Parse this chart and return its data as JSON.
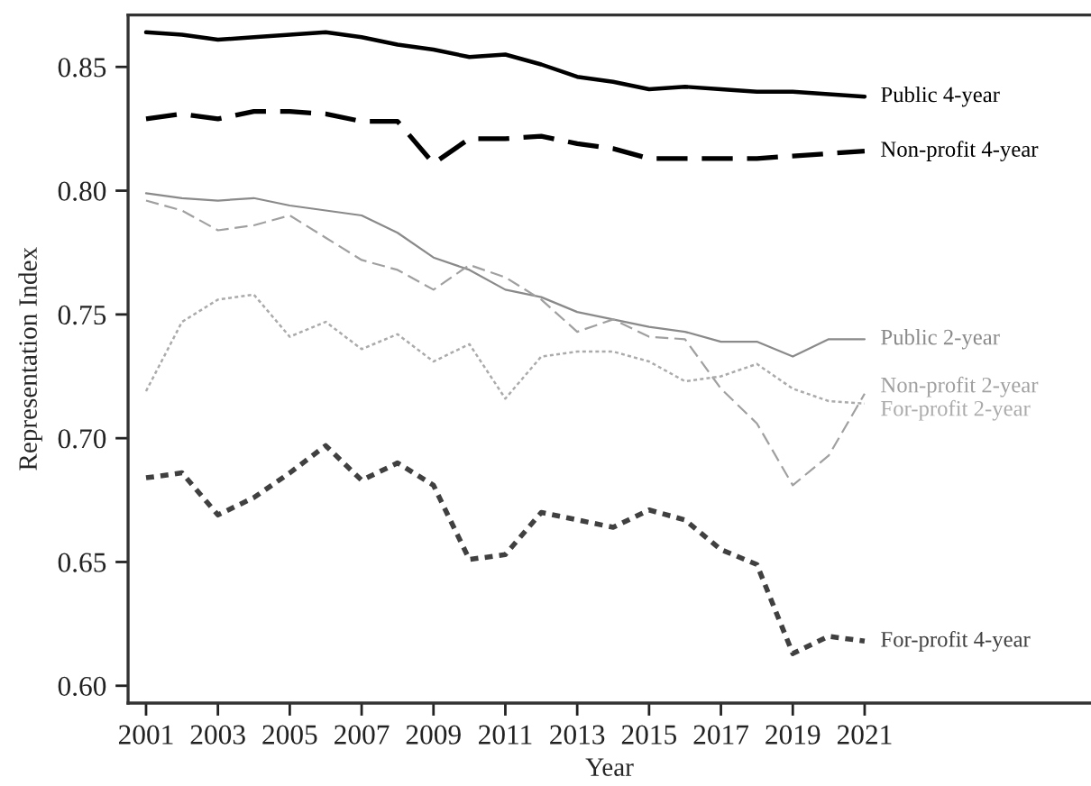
{
  "chart_data": {
    "type": "line",
    "xlabel": "Year",
    "ylabel": "Representation Index",
    "x": [
      2001,
      2002,
      2003,
      2004,
      2005,
      2006,
      2007,
      2008,
      2009,
      2010,
      2011,
      2012,
      2013,
      2014,
      2015,
      2016,
      2017,
      2018,
      2019,
      2020,
      2021
    ],
    "xlim": [
      2000.5,
      2027.3
    ],
    "xticks": [
      2001,
      2003,
      2005,
      2007,
      2009,
      2011,
      2013,
      2015,
      2017,
      2019,
      2021
    ],
    "ylim": [
      0.593,
      0.871
    ],
    "yticks": [
      {
        "value": 0.6,
        "label": "0.60"
      },
      0.65,
      {
        "value": 0.7,
        "label": "0.70"
      },
      0.75,
      {
        "value": 0.8,
        "label": "0.80"
      },
      0.85
    ],
    "grid": false,
    "legend": false,
    "marker": "none",
    "series": [
      {
        "name": "Public 4-year",
        "color": "#000000",
        "line_style": "solid",
        "values": [
          0.864,
          0.863,
          0.861,
          0.862,
          0.863,
          0.864,
          0.862,
          0.859,
          0.857,
          0.854,
          0.855,
          0.851,
          0.846,
          0.844,
          0.841,
          0.842,
          0.841,
          0.84,
          0.84,
          0.839,
          0.838
        ]
      },
      {
        "name": "Non-profit 4-year",
        "color": "#000000",
        "line_style": "dashed",
        "values": [
          0.829,
          0.831,
          0.829,
          0.832,
          0.832,
          0.831,
          0.828,
          0.828,
          0.811,
          0.821,
          0.821,
          0.822,
          0.819,
          0.817,
          0.813,
          0.813,
          0.813,
          0.813,
          0.814,
          0.815,
          0.816
        ]
      },
      {
        "name": "Public 2-year",
        "color": "#8a8a8a",
        "line_style": "solid",
        "values": [
          0.799,
          0.797,
          0.796,
          0.797,
          0.794,
          0.792,
          0.79,
          0.783,
          0.773,
          0.768,
          0.76,
          0.757,
          0.751,
          0.748,
          0.745,
          0.743,
          0.739,
          0.739,
          0.733,
          0.74,
          0.74
        ]
      },
      {
        "name": "Non-profit 2-year",
        "color": "#a0a0a0",
        "line_style": "dashed",
        "values": [
          0.796,
          0.792,
          0.784,
          0.786,
          0.79,
          0.781,
          0.772,
          0.768,
          0.76,
          0.77,
          0.765,
          0.756,
          0.743,
          0.748,
          0.741,
          0.74,
          0.72,
          0.706,
          0.681,
          0.693,
          0.718
        ]
      },
      {
        "name": "For-profit 2-year",
        "color": "#ababab",
        "line_style": "dotted",
        "values": [
          0.719,
          0.747,
          0.756,
          0.758,
          0.741,
          0.747,
          0.736,
          0.742,
          0.731,
          0.738,
          0.716,
          0.733,
          0.735,
          0.735,
          0.731,
          0.723,
          0.725,
          0.73,
          0.72,
          0.715,
          0.714
        ]
      },
      {
        "name": "For-profit 4-year",
        "color": "#404040",
        "line_style": "dotted",
        "values": [
          0.684,
          0.686,
          0.669,
          0.676,
          0.686,
          0.697,
          0.683,
          0.69,
          0.681,
          0.651,
          0.653,
          0.67,
          0.667,
          0.664,
          0.671,
          0.667,
          0.655,
          0.649,
          0.613,
          0.62,
          0.618
        ]
      }
    ]
  }
}
